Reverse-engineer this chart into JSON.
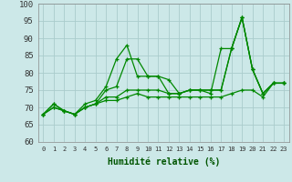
{
  "xlabel": "Humidité relative (%)",
  "background_color": "#cce8e8",
  "grid_color": "#aacccc",
  "line_color": "#008800",
  "xlim": [
    -0.5,
    23.5
  ],
  "ylim": [
    60,
    100
  ],
  "yticks": [
    60,
    65,
    70,
    75,
    80,
    85,
    90,
    95,
    100
  ],
  "xticks": [
    0,
    1,
    2,
    3,
    4,
    5,
    6,
    7,
    8,
    9,
    10,
    11,
    12,
    13,
    14,
    15,
    16,
    17,
    18,
    19,
    20,
    21,
    22,
    23
  ],
  "series": [
    [
      68,
      71,
      69,
      68,
      71,
      72,
      76,
      84,
      88,
      79,
      79,
      79,
      74,
      74,
      75,
      75,
      74,
      87,
      87,
      96,
      81,
      74,
      77,
      77
    ],
    [
      68,
      71,
      69,
      68,
      70,
      71,
      75,
      76,
      84,
      84,
      79,
      79,
      78,
      74,
      75,
      75,
      75,
      75,
      87,
      96,
      81,
      74,
      77,
      77
    ],
    [
      68,
      70,
      69,
      68,
      70,
      71,
      73,
      73,
      75,
      75,
      75,
      75,
      74,
      74,
      75,
      75,
      75,
      75,
      87,
      96,
      81,
      74,
      77,
      77
    ],
    [
      68,
      70,
      69,
      68,
      70,
      71,
      72,
      72,
      73,
      74,
      73,
      73,
      73,
      73,
      73,
      73,
      73,
      73,
      74,
      75,
      75,
      73,
      77,
      77
    ]
  ]
}
